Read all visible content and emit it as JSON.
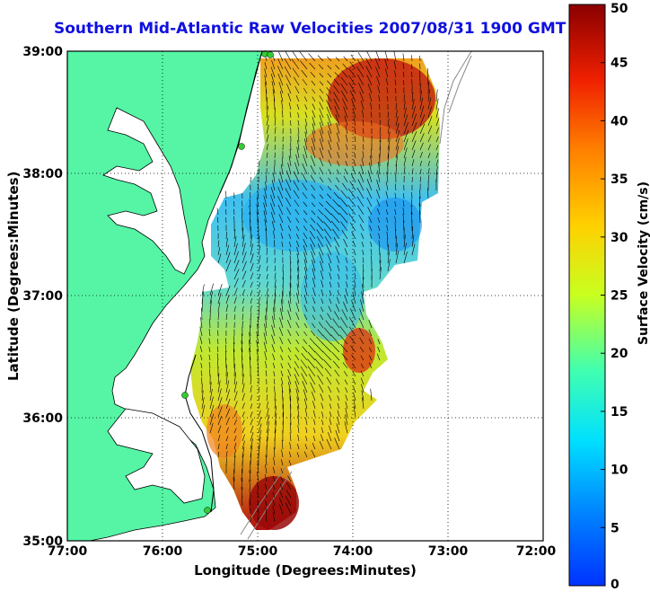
{
  "title": "Southern Mid-Atlantic Raw Velocities 2007/08/31 1900 GMT",
  "x_axis": {
    "label": "Longitude (Degrees:Minutes)",
    "ticks": [
      "77:00",
      "76:00",
      "75:00",
      "74:00",
      "73:00",
      "72:00"
    ]
  },
  "y_axis": {
    "label": "Latitude (Degrees:Minutes)",
    "ticks": [
      "39:00",
      "38:00",
      "37:00",
      "36:00",
      "35:00"
    ]
  },
  "colorbar": {
    "label": "Surface Velocity (cm/s)",
    "ticks": [
      "50",
      "45",
      "40",
      "35",
      "30",
      "25",
      "20",
      "15",
      "10",
      "5",
      "0"
    ],
    "range": [
      0,
      50
    ],
    "colormap": "jet"
  },
  "map": {
    "lon_range": [
      -77,
      -72
    ],
    "lat_range": [
      35,
      39
    ],
    "land_color": "#55f5a5",
    "coastline_color": "#000000",
    "bathymetry_color": "#888888",
    "grid": "dotted",
    "station_color": "#33cc33"
  }
}
